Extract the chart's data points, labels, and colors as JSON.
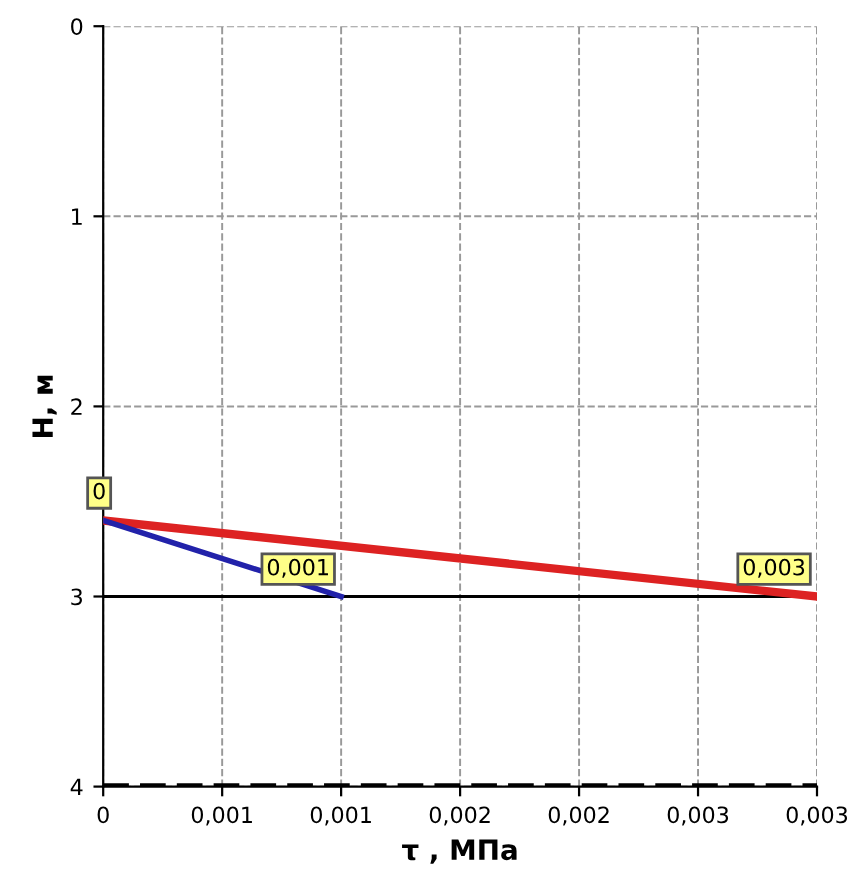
{
  "chart_data": {
    "type": "line",
    "xlabel": "τ , МПа",
    "ylabel": "H, м",
    "series": [
      {
        "color": "#dd2222",
        "x": [
          0,
          0.003
        ],
        "values": [
          2.6,
          3.0
        ]
      },
      {
        "color": "#2222aa",
        "x": [
          0,
          0.001
        ],
        "values": [
          2.6,
          3.0
        ]
      }
    ],
    "xlim": [
      0,
      0.003
    ],
    "ylim": [
      4,
      0
    ],
    "xticks": [
      0,
      {
        "value": 0.0005,
        "label": "0,001"
      },
      {
        "value": 0.001,
        "label": "0,001"
      },
      {
        "value": 0.0015,
        "label": "0,002"
      },
      {
        "value": 0.002,
        "label": "0,002"
      },
      {
        "value": 0.0025,
        "label": "0,003"
      },
      {
        "value": 0.003,
        "label": "0,003"
      }
    ],
    "yticks": [
      0,
      1,
      2,
      3,
      4
    ],
    "ref_lines": [
      {
        "axis": "y",
        "value": 3,
        "color": "#000000",
        "line_style": "solid"
      },
      {
        "axis": "y",
        "value": 4,
        "color": "#000000",
        "line_style": "dashed"
      }
    ],
    "annotations": [
      {
        "text": "0",
        "x": 0,
        "y": 2.6
      },
      {
        "text": "0,001",
        "x": 0.001,
        "y": 3.0
      },
      {
        "text": "0,003",
        "x": 0.003,
        "y": 3.0
      }
    ],
    "grid": true,
    "line_style": "solid",
    "marker": "none"
  }
}
